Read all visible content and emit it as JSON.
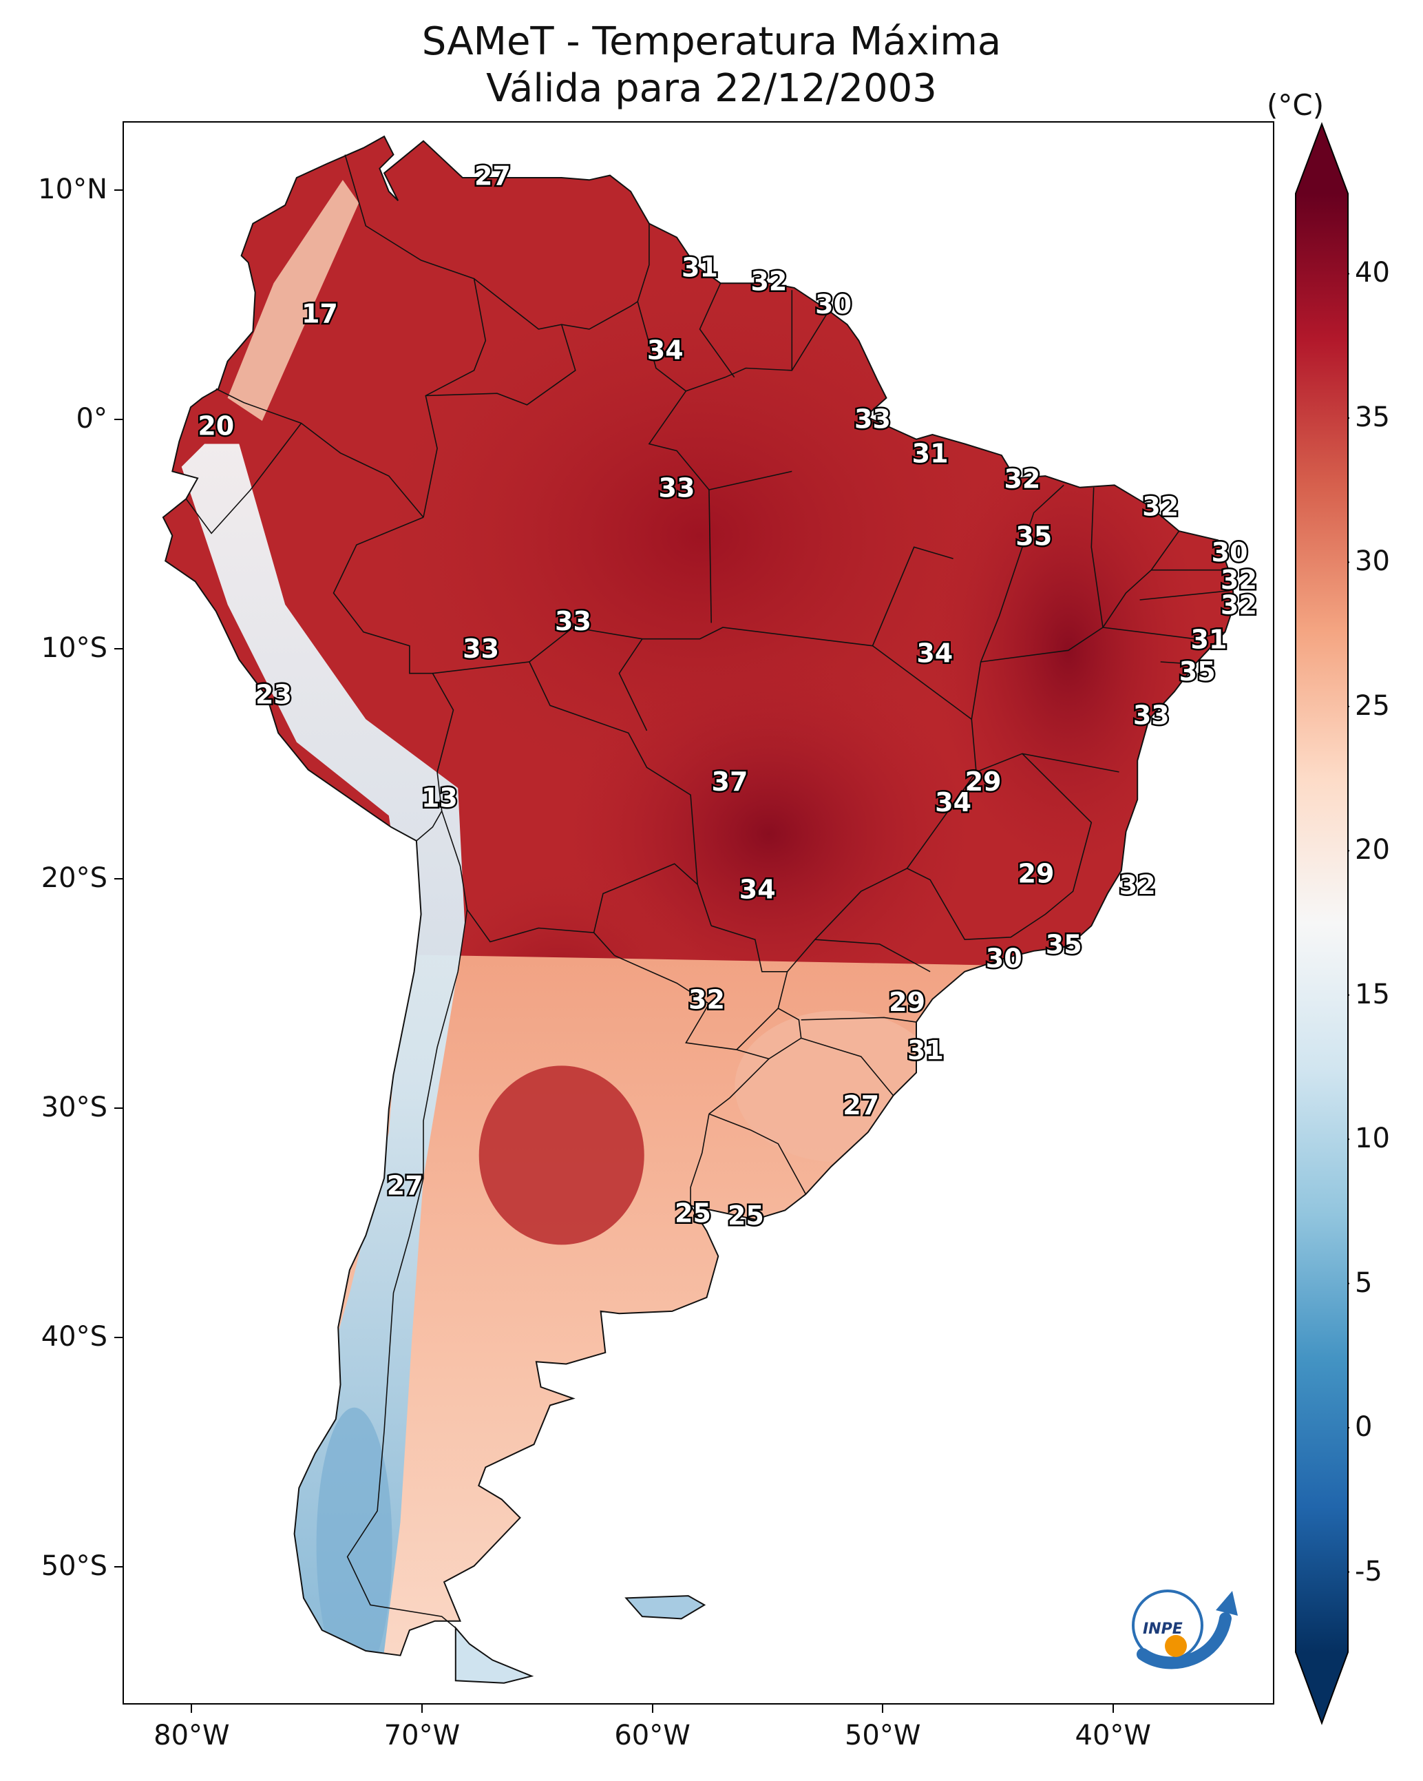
{
  "title": "SAMeT - Temperatura Máxima",
  "subtitle": "Válida para 22/12/2003",
  "units": "(°C)",
  "lon_ticks": [
    "80°W",
    "70°W",
    "60°W",
    "50°W",
    "40°W"
  ],
  "lat_ticks": [
    "10°N",
    "0°",
    "10°S",
    "20°S",
    "30°S",
    "40°S",
    "50°S"
  ],
  "colorbar": {
    "ticks": [
      "40",
      "35",
      "30",
      "25",
      "20",
      "15",
      "10",
      "5",
      "0",
      "-5"
    ],
    "min": -5,
    "max": 40,
    "extend": "both",
    "colormap": "RdBu_r",
    "colors": [
      "#053061",
      "#2166ac",
      "#4393c3",
      "#92c5de",
      "#d1e5f0",
      "#f7f7f7",
      "#fddbc7",
      "#f4a582",
      "#d6604d",
      "#b2182b",
      "#67001f"
    ]
  },
  "logo_text": "INPE",
  "chart_data": {
    "type": "heatmap",
    "title": "SAMeT - Temperatura Máxima",
    "subtitle": "Válida para 22/12/2003",
    "units": "°C",
    "xlim": [
      -83,
      -33
    ],
    "ylim": [
      -56,
      13
    ],
    "contour_labels": [
      {
        "lon": -67.0,
        "lat": 10.6,
        "value": "27"
      },
      {
        "lon": -74.5,
        "lat": 4.6,
        "value": "17"
      },
      {
        "lon": -58.0,
        "lat": 6.6,
        "value": "31"
      },
      {
        "lon": -55.0,
        "lat": 6.0,
        "value": "32"
      },
      {
        "lon": -52.2,
        "lat": 5.0,
        "value": "30"
      },
      {
        "lon": -59.5,
        "lat": 3.0,
        "value": "34"
      },
      {
        "lon": -79.0,
        "lat": -0.3,
        "value": "20"
      },
      {
        "lon": -50.5,
        "lat": 0.0,
        "value": "33"
      },
      {
        "lon": -48.0,
        "lat": -1.5,
        "value": "31"
      },
      {
        "lon": -59.0,
        "lat": -3.0,
        "value": "33"
      },
      {
        "lon": -44.0,
        "lat": -2.6,
        "value": "32"
      },
      {
        "lon": -38.0,
        "lat": -3.8,
        "value": "32"
      },
      {
        "lon": -43.5,
        "lat": -5.1,
        "value": "35"
      },
      {
        "lon": -35.0,
        "lat": -5.8,
        "value": "30"
      },
      {
        "lon": -34.6,
        "lat": -7.0,
        "value": "32"
      },
      {
        "lon": -34.6,
        "lat": -8.1,
        "value": "32"
      },
      {
        "lon": -63.5,
        "lat": -8.8,
        "value": "33"
      },
      {
        "lon": -67.5,
        "lat": -10.0,
        "value": "33"
      },
      {
        "lon": -35.9,
        "lat": -9.6,
        "value": "31"
      },
      {
        "lon": -47.8,
        "lat": -10.2,
        "value": "34"
      },
      {
        "lon": -36.4,
        "lat": -11.0,
        "value": "35"
      },
      {
        "lon": -38.4,
        "lat": -12.9,
        "value": "33"
      },
      {
        "lon": -76.5,
        "lat": -12.0,
        "value": "23"
      },
      {
        "lon": -45.7,
        "lat": -15.8,
        "value": "29"
      },
      {
        "lon": -56.7,
        "lat": -15.8,
        "value": "37"
      },
      {
        "lon": -69.3,
        "lat": -16.5,
        "value": "13"
      },
      {
        "lon": -47.0,
        "lat": -16.7,
        "value": "34"
      },
      {
        "lon": -43.4,
        "lat": -19.8,
        "value": "29"
      },
      {
        "lon": -39.0,
        "lat": -20.3,
        "value": "32"
      },
      {
        "lon": -55.5,
        "lat": -20.5,
        "value": "34"
      },
      {
        "lon": -42.2,
        "lat": -22.9,
        "value": "35"
      },
      {
        "lon": -44.8,
        "lat": -23.5,
        "value": "30"
      },
      {
        "lon": -57.7,
        "lat": -25.3,
        "value": "32"
      },
      {
        "lon": -49.0,
        "lat": -25.4,
        "value": "29"
      },
      {
        "lon": -48.2,
        "lat": -27.5,
        "value": "31"
      },
      {
        "lon": -51.0,
        "lat": -29.9,
        "value": "27"
      },
      {
        "lon": -70.8,
        "lat": -33.4,
        "value": "27"
      },
      {
        "lon": -58.3,
        "lat": -34.6,
        "value": "25"
      },
      {
        "lon": -56.0,
        "lat": -34.7,
        "value": "25"
      }
    ]
  }
}
